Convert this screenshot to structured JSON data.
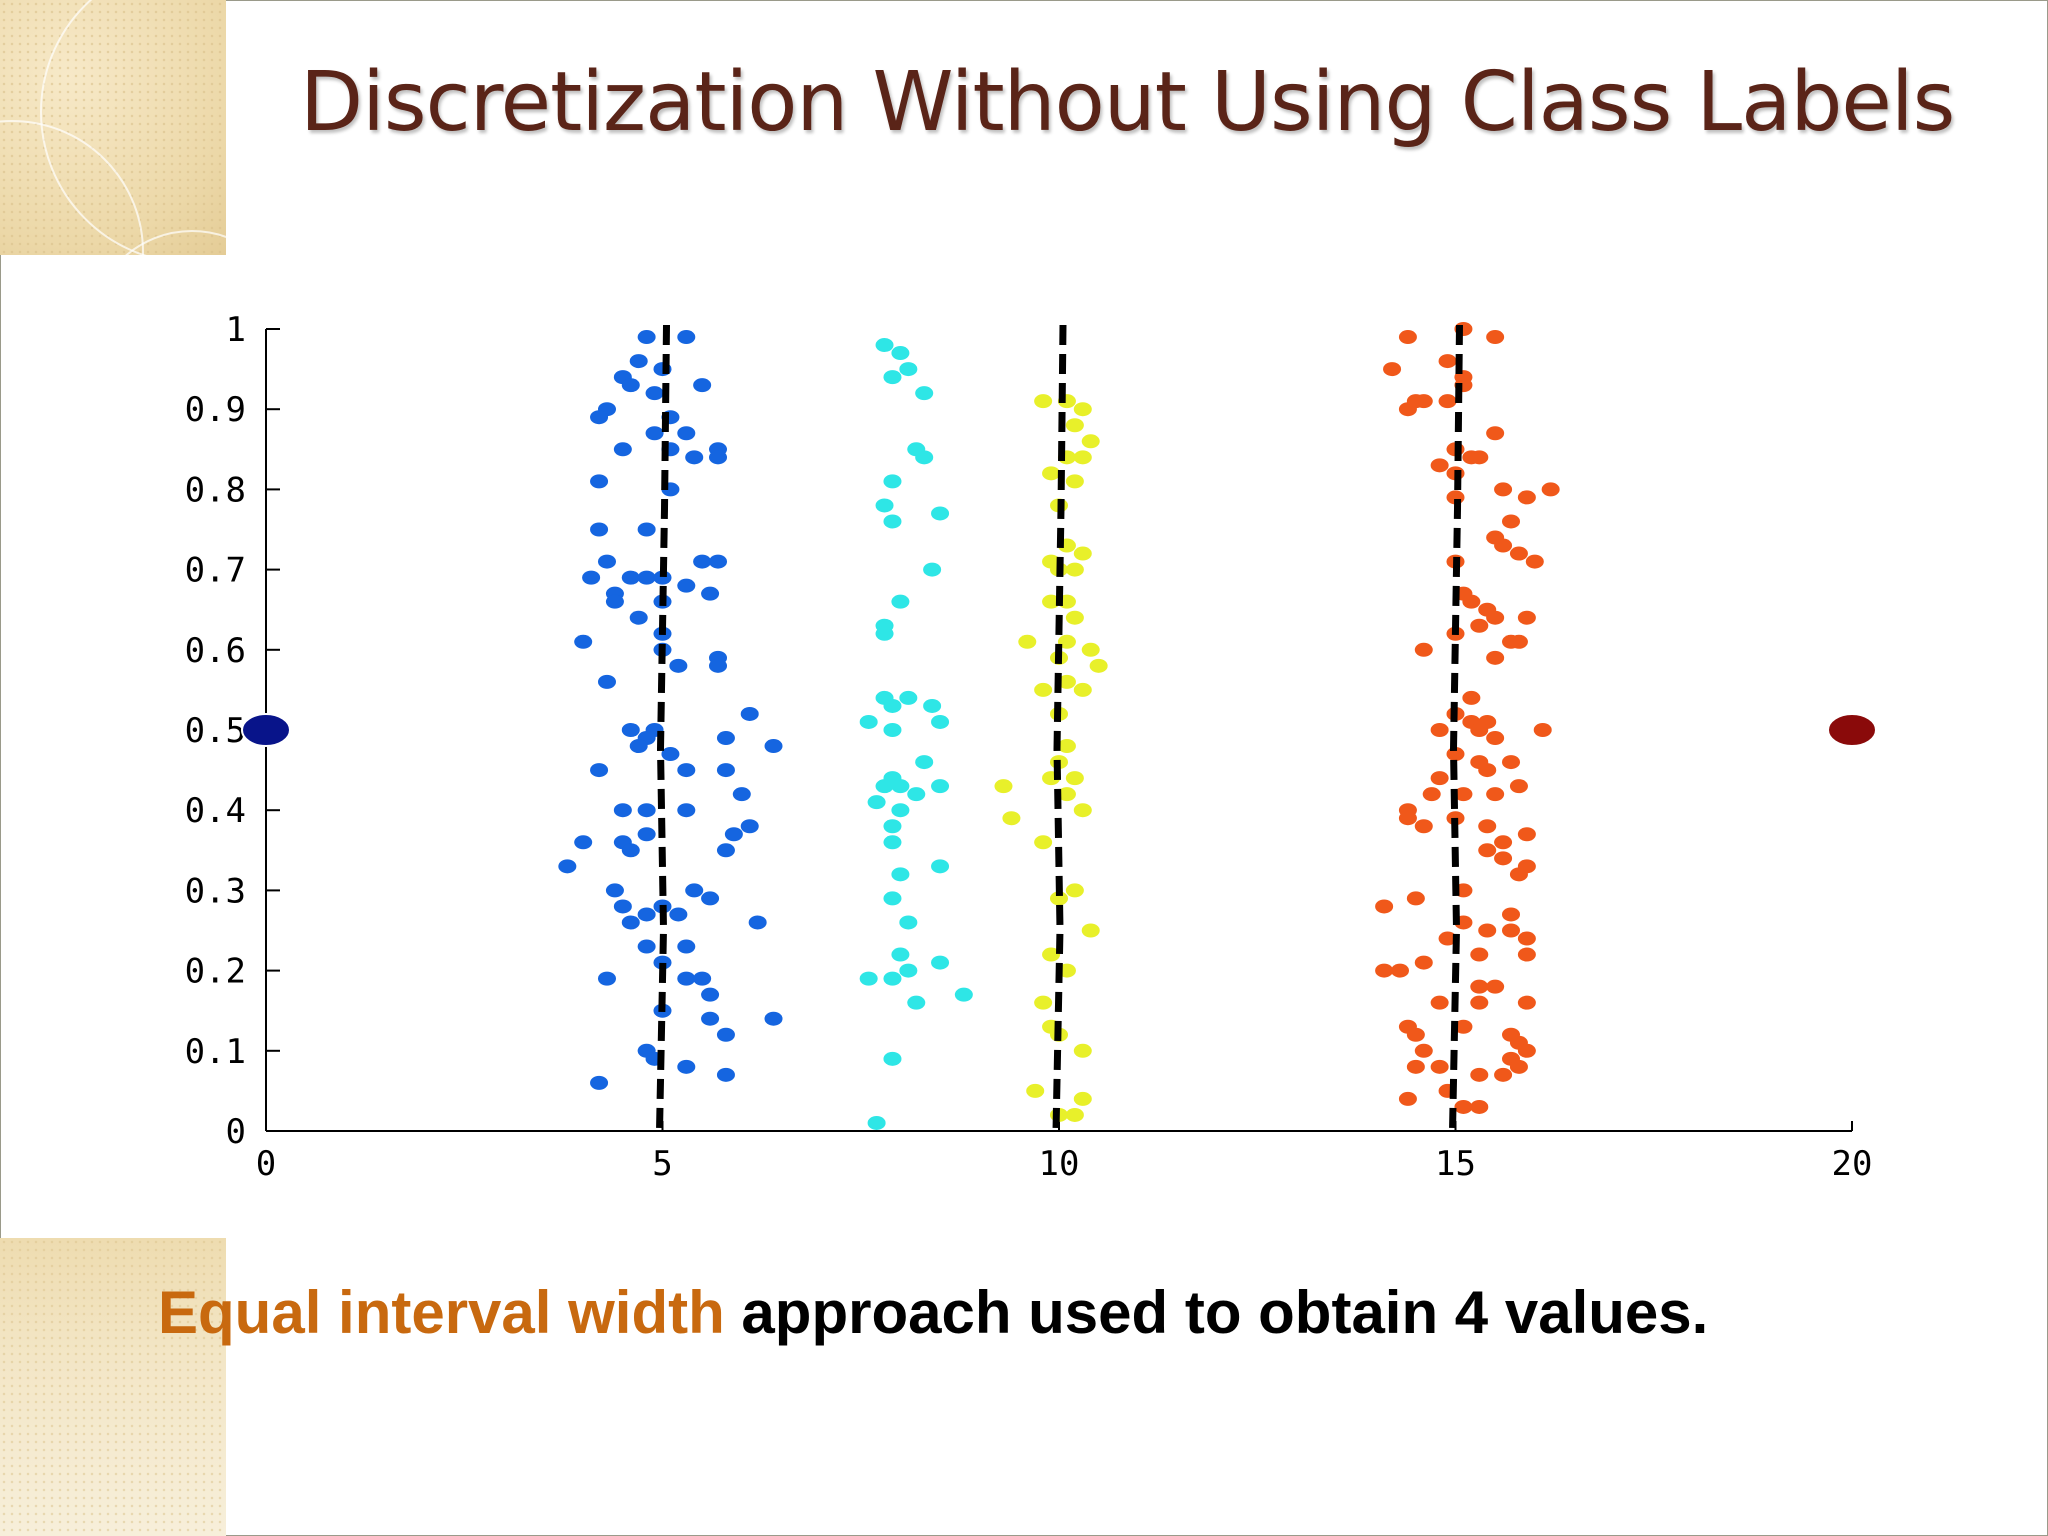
{
  "slide": {
    "title": "Discretization Without Using Class Labels",
    "caption_highlight": "Equal interval width",
    "caption_rest": " approach used to obtain 4 values."
  },
  "colors": {
    "title": "#5a2418",
    "caption_highlight": "#c8690f",
    "blue": "#1565e0",
    "cyan": "#2ee6e6",
    "yellow": "#e8f02a",
    "orange": "#f0581a",
    "dark_blue": "#08148a",
    "dark_red": "#8a0a0a"
  },
  "chart_data": {
    "type": "scatter",
    "xlim": [
      0,
      20
    ],
    "ylim": [
      0,
      1
    ],
    "x_ticks": [
      "0",
      "5",
      "10",
      "15",
      "20"
    ],
    "y_ticks": [
      "0",
      "0.1",
      "0.2",
      "0.3",
      "0.4",
      "0.5",
      "0.6",
      "0.7",
      "0.8",
      "0.9",
      "1"
    ],
    "grid": false,
    "split_lines": [
      5,
      10,
      15
    ],
    "endpoints": [
      {
        "x": 0,
        "y": 0.5,
        "color": "#08148a"
      },
      {
        "x": 20,
        "y": 0.5,
        "color": "#8a0a0a"
      }
    ],
    "series": [
      {
        "color": "#1565e0",
        "points": [
          [
            4.8,
            0.99
          ],
          [
            5.3,
            0.99
          ],
          [
            4.7,
            0.96
          ],
          [
            5.0,
            0.95
          ],
          [
            4.5,
            0.94
          ],
          [
            4.6,
            0.93
          ],
          [
            5.5,
            0.93
          ],
          [
            4.9,
            0.92
          ],
          [
            4.3,
            0.9
          ],
          [
            4.2,
            0.89
          ],
          [
            5.1,
            0.89
          ],
          [
            4.9,
            0.87
          ],
          [
            5.3,
            0.87
          ],
          [
            4.5,
            0.85
          ],
          [
            5.1,
            0.85
          ],
          [
            5.7,
            0.85
          ],
          [
            5.7,
            0.84
          ],
          [
            5.4,
            0.84
          ],
          [
            4.2,
            0.81
          ],
          [
            5.1,
            0.8
          ],
          [
            4.2,
            0.75
          ],
          [
            4.8,
            0.75
          ],
          [
            4.3,
            0.71
          ],
          [
            5.5,
            0.71
          ],
          [
            5.7,
            0.71
          ],
          [
            4.1,
            0.69
          ],
          [
            4.6,
            0.69
          ],
          [
            4.8,
            0.69
          ],
          [
            5.0,
            0.69
          ],
          [
            5.3,
            0.68
          ],
          [
            4.4,
            0.67
          ],
          [
            5.6,
            0.67
          ],
          [
            4.4,
            0.66
          ],
          [
            5.0,
            0.66
          ],
          [
            4.7,
            0.64
          ],
          [
            5.0,
            0.62
          ],
          [
            4.0,
            0.61
          ],
          [
            5.0,
            0.6
          ],
          [
            5.7,
            0.59
          ],
          [
            5.2,
            0.58
          ],
          [
            5.7,
            0.58
          ],
          [
            4.3,
            0.56
          ],
          [
            6.1,
            0.52
          ],
          [
            4.6,
            0.5
          ],
          [
            4.9,
            0.5
          ],
          [
            4.8,
            0.49
          ],
          [
            5.8,
            0.49
          ],
          [
            4.7,
            0.48
          ],
          [
            5.1,
            0.47
          ],
          [
            6.4,
            0.48
          ],
          [
            4.2,
            0.45
          ],
          [
            5.3,
            0.45
          ],
          [
            5.8,
            0.45
          ],
          [
            6.0,
            0.42
          ],
          [
            4.5,
            0.4
          ],
          [
            4.8,
            0.4
          ],
          [
            5.3,
            0.4
          ],
          [
            4.8,
            0.37
          ],
          [
            6.1,
            0.38
          ],
          [
            5.9,
            0.37
          ],
          [
            4.0,
            0.36
          ],
          [
            4.5,
            0.36
          ],
          [
            4.6,
            0.35
          ],
          [
            5.8,
            0.35
          ],
          [
            3.8,
            0.33
          ],
          [
            4.4,
            0.3
          ],
          [
            5.4,
            0.3
          ],
          [
            5.6,
            0.29
          ],
          [
            4.5,
            0.28
          ],
          [
            5.0,
            0.28
          ],
          [
            4.8,
            0.27
          ],
          [
            5.2,
            0.27
          ],
          [
            4.6,
            0.26
          ],
          [
            6.2,
            0.26
          ],
          [
            4.8,
            0.23
          ],
          [
            5.3,
            0.23
          ],
          [
            5.0,
            0.21
          ],
          [
            4.3,
            0.19
          ],
          [
            5.3,
            0.19
          ],
          [
            5.5,
            0.19
          ],
          [
            5.6,
            0.17
          ],
          [
            5.0,
            0.15
          ],
          [
            6.4,
            0.14
          ],
          [
            5.6,
            0.14
          ],
          [
            5.8,
            0.12
          ],
          [
            4.8,
            0.1
          ],
          [
            4.9,
            0.09
          ],
          [
            5.3,
            0.08
          ],
          [
            5.8,
            0.07
          ],
          [
            4.2,
            0.06
          ]
        ]
      },
      {
        "color": "#2ee6e6",
        "points": [
          [
            7.8,
            0.98
          ],
          [
            8.0,
            0.97
          ],
          [
            8.1,
            0.95
          ],
          [
            7.9,
            0.94
          ],
          [
            8.3,
            0.92
          ],
          [
            8.2,
            0.85
          ],
          [
            8.3,
            0.84
          ],
          [
            7.9,
            0.81
          ],
          [
            7.8,
            0.78
          ],
          [
            7.9,
            0.76
          ],
          [
            8.5,
            0.77
          ],
          [
            8.4,
            0.7
          ],
          [
            8.0,
            0.66
          ],
          [
            7.8,
            0.62
          ],
          [
            7.8,
            0.63
          ],
          [
            7.8,
            0.54
          ],
          [
            7.9,
            0.53
          ],
          [
            8.1,
            0.54
          ],
          [
            8.4,
            0.53
          ],
          [
            8.5,
            0.51
          ],
          [
            7.6,
            0.51
          ],
          [
            7.9,
            0.5
          ],
          [
            8.3,
            0.46
          ],
          [
            7.9,
            0.44
          ],
          [
            7.8,
            0.43
          ],
          [
            8.0,
            0.43
          ],
          [
            8.5,
            0.43
          ],
          [
            8.2,
            0.42
          ],
          [
            7.7,
            0.41
          ],
          [
            8.0,
            0.4
          ],
          [
            7.9,
            0.38
          ],
          [
            7.9,
            0.36
          ],
          [
            8.0,
            0.32
          ],
          [
            8.5,
            0.33
          ],
          [
            7.9,
            0.29
          ],
          [
            8.1,
            0.26
          ],
          [
            8.0,
            0.22
          ],
          [
            7.6,
            0.19
          ],
          [
            7.9,
            0.19
          ],
          [
            8.1,
            0.2
          ],
          [
            8.5,
            0.21
          ],
          [
            8.8,
            0.17
          ],
          [
            8.2,
            0.16
          ],
          [
            7.9,
            0.09
          ],
          [
            7.7,
            0.01
          ]
        ]
      },
      {
        "color": "#e8f02a",
        "points": [
          [
            9.8,
            0.91
          ],
          [
            10.1,
            0.91
          ],
          [
            10.3,
            0.9
          ],
          [
            10.2,
            0.88
          ],
          [
            10.4,
            0.86
          ],
          [
            10.1,
            0.84
          ],
          [
            10.3,
            0.84
          ],
          [
            9.9,
            0.82
          ],
          [
            10.2,
            0.81
          ],
          [
            10.0,
            0.78
          ],
          [
            10.1,
            0.73
          ],
          [
            10.3,
            0.72
          ],
          [
            9.9,
            0.71
          ],
          [
            10.0,
            0.7
          ],
          [
            10.2,
            0.7
          ],
          [
            9.9,
            0.66
          ],
          [
            10.1,
            0.66
          ],
          [
            10.2,
            0.64
          ],
          [
            9.6,
            0.61
          ],
          [
            10.1,
            0.61
          ],
          [
            10.4,
            0.6
          ],
          [
            10.0,
            0.59
          ],
          [
            10.5,
            0.58
          ],
          [
            10.1,
            0.56
          ],
          [
            9.8,
            0.55
          ],
          [
            10.3,
            0.55
          ],
          [
            10.0,
            0.52
          ],
          [
            10.1,
            0.48
          ],
          [
            10.0,
            0.46
          ],
          [
            9.9,
            0.44
          ],
          [
            10.2,
            0.44
          ],
          [
            9.3,
            0.43
          ],
          [
            10.1,
            0.42
          ],
          [
            10.3,
            0.4
          ],
          [
            9.4,
            0.39
          ],
          [
            9.8,
            0.36
          ],
          [
            10.2,
            0.3
          ],
          [
            10.0,
            0.29
          ],
          [
            10.4,
            0.25
          ],
          [
            9.9,
            0.22
          ],
          [
            10.1,
            0.2
          ],
          [
            9.8,
            0.16
          ],
          [
            9.9,
            0.13
          ],
          [
            10.0,
            0.12
          ],
          [
            10.3,
            0.1
          ],
          [
            9.7,
            0.05
          ],
          [
            10.3,
            0.04
          ],
          [
            10.0,
            0.02
          ],
          [
            10.2,
            0.02
          ]
        ]
      },
      {
        "color": "#f0581a",
        "points": [
          [
            14.4,
            0.99
          ],
          [
            15.1,
            1.0
          ],
          [
            15.5,
            0.99
          ],
          [
            14.9,
            0.96
          ],
          [
            14.2,
            0.95
          ],
          [
            15.1,
            0.94
          ],
          [
            15.1,
            0.93
          ],
          [
            14.5,
            0.91
          ],
          [
            14.6,
            0.91
          ],
          [
            14.9,
            0.91
          ],
          [
            14.4,
            0.9
          ],
          [
            15.5,
            0.87
          ],
          [
            15.0,
            0.85
          ],
          [
            15.2,
            0.84
          ],
          [
            15.3,
            0.84
          ],
          [
            14.8,
            0.83
          ],
          [
            15.0,
            0.82
          ],
          [
            15.6,
            0.8
          ],
          [
            16.2,
            0.8
          ],
          [
            15.0,
            0.79
          ],
          [
            15.9,
            0.79
          ],
          [
            15.7,
            0.76
          ],
          [
            15.5,
            0.74
          ],
          [
            15.6,
            0.73
          ],
          [
            15.8,
            0.72
          ],
          [
            15.0,
            0.71
          ],
          [
            16.0,
            0.71
          ],
          [
            15.1,
            0.67
          ],
          [
            15.2,
            0.66
          ],
          [
            15.4,
            0.65
          ],
          [
            15.5,
            0.64
          ],
          [
            15.3,
            0.63
          ],
          [
            15.9,
            0.64
          ],
          [
            15.0,
            0.62
          ],
          [
            15.8,
            0.61
          ],
          [
            15.7,
            0.61
          ],
          [
            14.6,
            0.6
          ],
          [
            15.5,
            0.59
          ],
          [
            15.2,
            0.54
          ],
          [
            15.0,
            0.52
          ],
          [
            15.2,
            0.51
          ],
          [
            15.4,
            0.51
          ],
          [
            14.8,
            0.5
          ],
          [
            15.3,
            0.5
          ],
          [
            15.5,
            0.49
          ],
          [
            16.1,
            0.5
          ],
          [
            15.0,
            0.47
          ],
          [
            15.3,
            0.46
          ],
          [
            15.4,
            0.45
          ],
          [
            15.7,
            0.46
          ],
          [
            14.8,
            0.44
          ],
          [
            15.8,
            0.43
          ],
          [
            15.1,
            0.42
          ],
          [
            15.5,
            0.42
          ],
          [
            14.7,
            0.42
          ],
          [
            14.4,
            0.4
          ],
          [
            14.6,
            0.38
          ],
          [
            14.4,
            0.39
          ],
          [
            15.0,
            0.39
          ],
          [
            15.4,
            0.38
          ],
          [
            15.9,
            0.37
          ],
          [
            15.6,
            0.36
          ],
          [
            15.4,
            0.35
          ],
          [
            15.6,
            0.34
          ],
          [
            15.9,
            0.33
          ],
          [
            15.8,
            0.32
          ],
          [
            15.1,
            0.3
          ],
          [
            14.5,
            0.29
          ],
          [
            14.1,
            0.28
          ],
          [
            15.7,
            0.27
          ],
          [
            15.1,
            0.26
          ],
          [
            15.4,
            0.25
          ],
          [
            15.7,
            0.25
          ],
          [
            15.9,
            0.24
          ],
          [
            14.9,
            0.24
          ],
          [
            15.3,
            0.22
          ],
          [
            15.9,
            0.22
          ],
          [
            14.6,
            0.21
          ],
          [
            14.1,
            0.2
          ],
          [
            14.3,
            0.2
          ],
          [
            15.3,
            0.18
          ],
          [
            15.5,
            0.18
          ],
          [
            14.8,
            0.16
          ],
          [
            15.3,
            0.16
          ],
          [
            15.9,
            0.16
          ],
          [
            14.4,
            0.13
          ],
          [
            14.5,
            0.12
          ],
          [
            15.1,
            0.13
          ],
          [
            15.7,
            0.12
          ],
          [
            15.8,
            0.11
          ],
          [
            14.6,
            0.1
          ],
          [
            15.9,
            0.1
          ],
          [
            15.7,
            0.09
          ],
          [
            15.8,
            0.08
          ],
          [
            14.5,
            0.08
          ],
          [
            14.8,
            0.08
          ],
          [
            15.6,
            0.07
          ],
          [
            15.3,
            0.07
          ],
          [
            14.9,
            0.05
          ],
          [
            14.4,
            0.04
          ],
          [
            15.1,
            0.03
          ],
          [
            15.3,
            0.03
          ]
        ]
      }
    ]
  }
}
